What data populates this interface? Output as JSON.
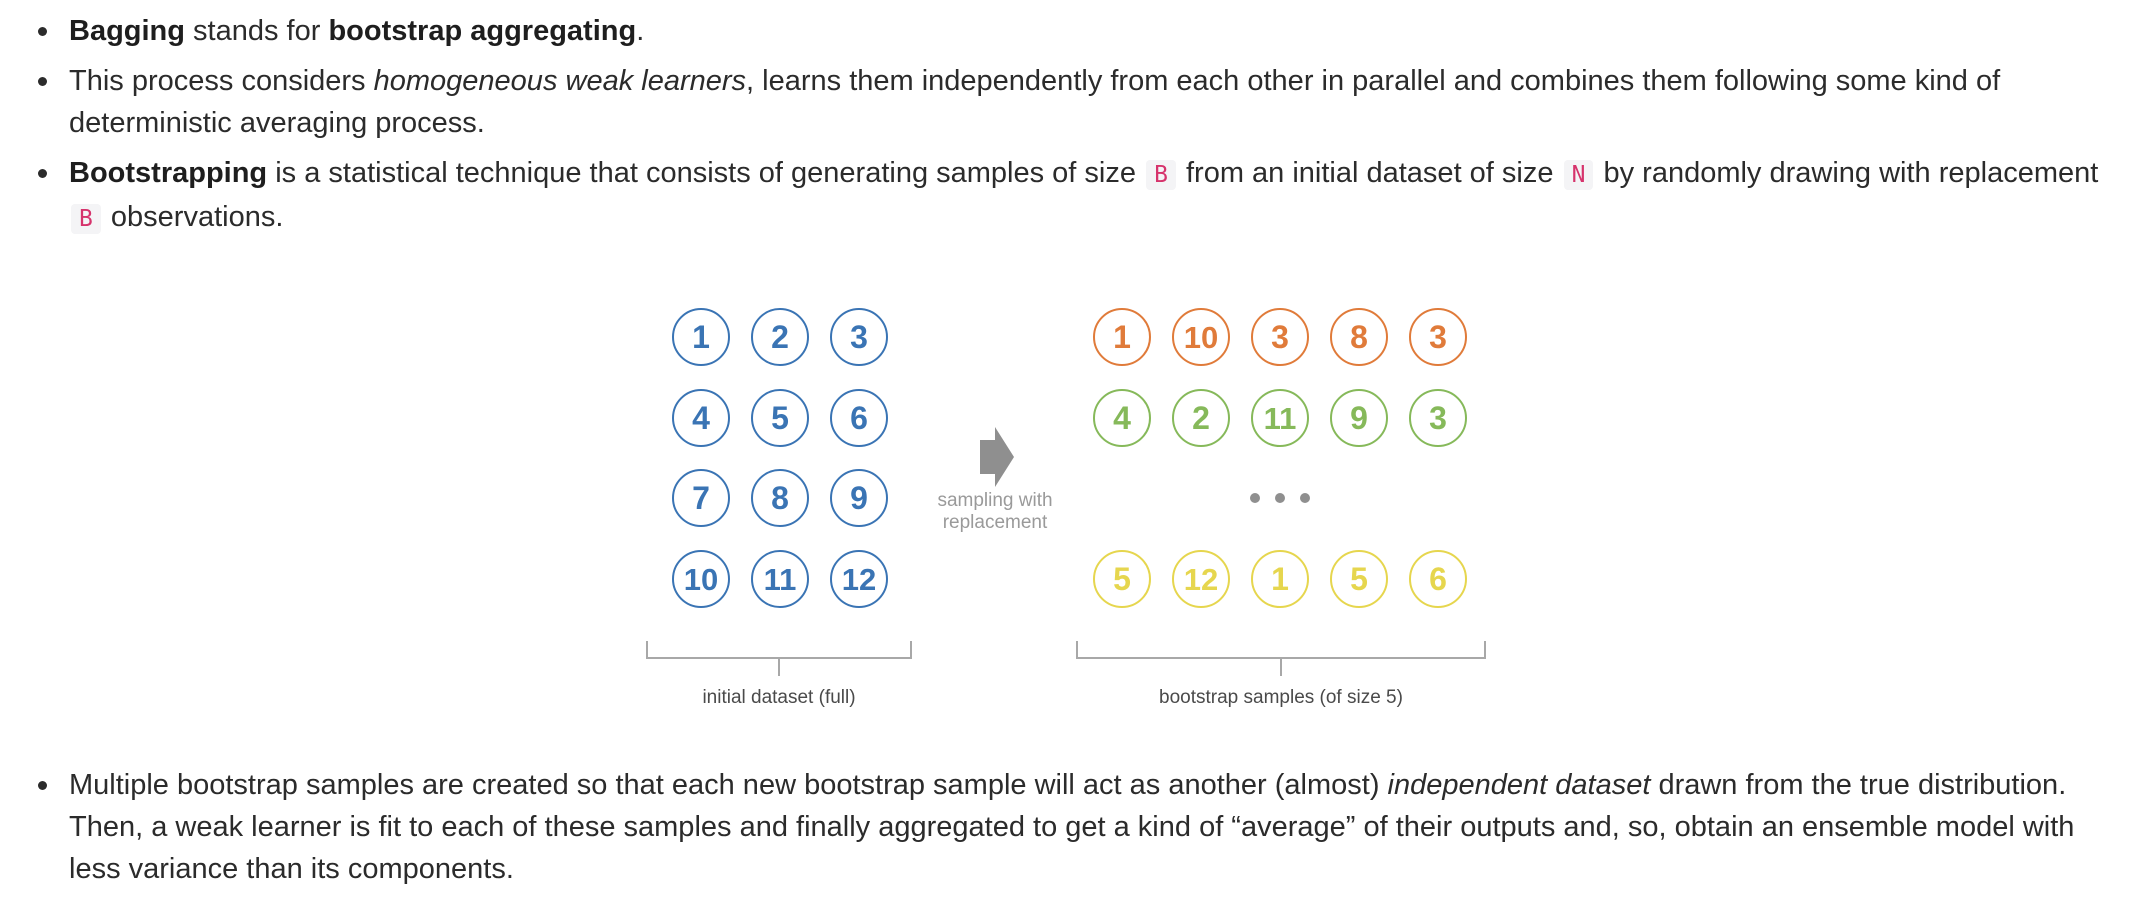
{
  "bullets_top": [
    {
      "bold1": "Bagging",
      "t1": " stands for ",
      "bold2": "bootstrap aggregating",
      "t2": "."
    },
    {
      "t1": "This process considers ",
      "italic": "homogeneous weak learners",
      "t2": ", learns them independently from each other in parallel and combines them following some kind of deterministic averaging process."
    },
    {
      "bold": "Bootstrapping",
      "t1": " is a statistical technique that consists of generating samples of size ",
      "code1": "B",
      "t2": " from an initial dataset of size ",
      "code2": "N",
      "t3": " by randomly drawing with replacement ",
      "code3": "B",
      "t4": " observations."
    }
  ],
  "bullet_bottom": {
    "t1": "Multiple bootstrap samples are created so that each new bootstrap sample will act as another (almost) ",
    "italic": "independent dataset",
    "t2": " drawn from the true distribution. Then, a weak learner is fit to each of these samples and finally aggregated to get a kind of “average” of their outputs and, so, obtain an ensemble model with less variance than its components."
  },
  "figure": {
    "initial_dataset": [
      [
        1,
        2,
        3
      ],
      [
        4,
        5,
        6
      ],
      [
        7,
        8,
        9
      ],
      [
        10,
        11,
        12
      ]
    ],
    "initial_color": "#3a74b4",
    "bootstrap_samples": [
      {
        "values": [
          1,
          10,
          3,
          8,
          3
        ],
        "color": "#e07b3a"
      },
      {
        "values": [
          4,
          2,
          11,
          9,
          3
        ],
        "color": "#86b95a"
      },
      {
        "values": [
          5,
          12,
          1,
          5,
          6
        ],
        "color": "#e6d64e"
      }
    ],
    "arrow_label_line1": "sampling with",
    "arrow_label_line2": "replacement",
    "ellipsis_dots": 3,
    "label_initial": "initial dataset (full)",
    "label_bootstrap": "bootstrap samples (of size 5)",
    "bracket_color": "#a8a8a8",
    "arrow_color": "#8f8f8f",
    "caption_color": "#4a4a4a",
    "arrow_text_color": "#9a9a9a"
  }
}
